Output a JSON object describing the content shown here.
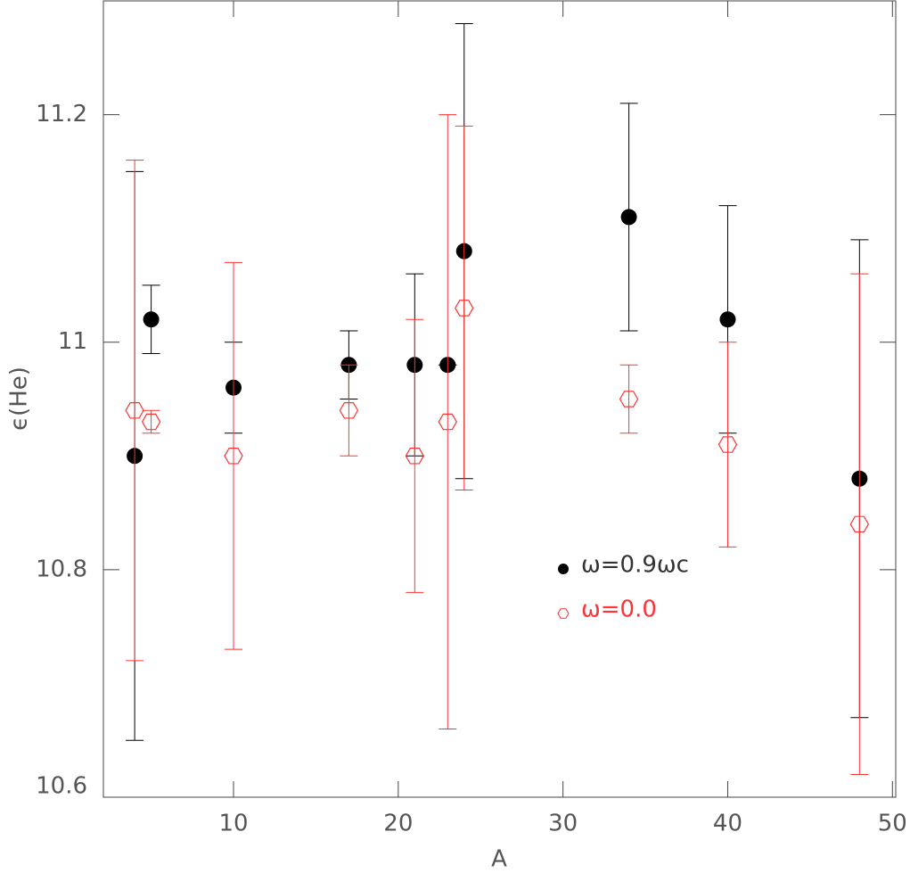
{
  "chart_data": {
    "type": "scatter",
    "x_label": "A",
    "y_label": "ϵ(He)",
    "xlim": [
      2.1,
      50.2
    ],
    "ylim": [
      10.6,
      11.3
    ],
    "xticks": [
      10,
      20,
      30,
      40,
      50
    ],
    "yticks": [
      10.6,
      10.8,
      11,
      11.2
    ],
    "series": [
      {
        "name": "ω=0.9ωc",
        "color": "#000000",
        "marker": "circle",
        "x": [
          4,
          5,
          10,
          17,
          21,
          23,
          24,
          34,
          40,
          48
        ],
        "values": [
          10.9,
          11.02,
          10.96,
          10.98,
          10.98,
          10.98,
          11.08,
          11.11,
          11.02,
          10.88
        ],
        "errors": [
          0.25,
          0.03,
          0.04,
          0.03,
          0.08,
          0,
          0.2,
          0.1,
          0.1,
          0.21
        ]
      },
      {
        "name": "ω=0.0",
        "color": "#ff3333",
        "marker": "hexagon",
        "x": [
          4,
          5,
          10,
          17,
          21,
          23,
          24,
          34,
          40,
          48
        ],
        "values": [
          10.94,
          10.93,
          10.9,
          10.94,
          10.9,
          10.93,
          11.03,
          10.95,
          10.91,
          10.84
        ],
        "errors": [
          0.22,
          0.01,
          0.17,
          0.04,
          0.12,
          0.27,
          0.16,
          0.03,
          0.09,
          0.22
        ]
      }
    ]
  }
}
